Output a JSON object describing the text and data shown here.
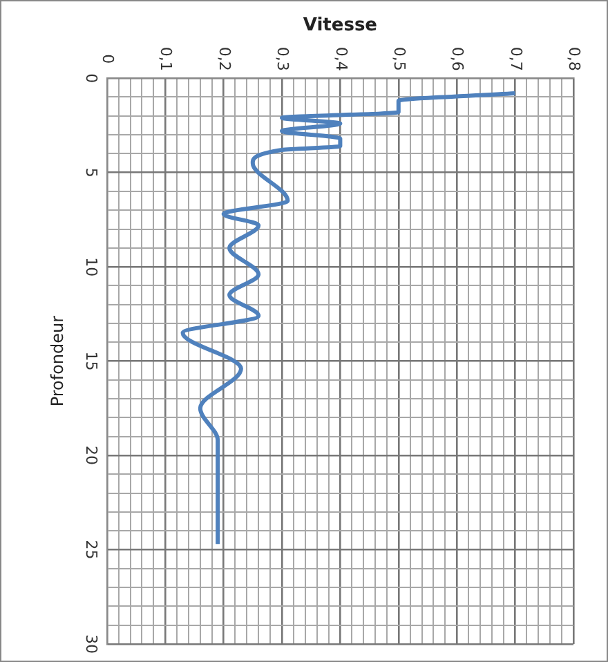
{
  "chart_data": {
    "type": "line",
    "xlabel": "Vitesse",
    "ylabel": "Profondeur",
    "color": "#4f81bd",
    "grid": true,
    "marker": "none",
    "line_style": "solid",
    "x": [
      0.7,
      0.5,
      0.5,
      0.3,
      0.4,
      0.3,
      0.4,
      0.4,
      0.3,
      0.25,
      0.31,
      0.2,
      0.26,
      0.21,
      0.26,
      0.21,
      0.26,
      0.13,
      0.23,
      0.16,
      0.19,
      0.19
    ],
    "values": [
      0.8,
      1.2,
      1.8,
      2.1,
      2.4,
      2.8,
      3.2,
      3.6,
      3.8,
      4.5,
      6.5,
      7.2,
      7.8,
      9.0,
      10.4,
      11.5,
      12.6,
      13.5,
      15.4,
      17.5,
      19.2,
      24.7
    ],
    "ylim": [
      30,
      0
    ],
    "yticks": [
      0,
      {
        "value": 1,
        "label": null
      },
      {
        "value": 2,
        "label": null
      },
      {
        "value": 3,
        "label": null
      },
      {
        "value": 4,
        "label": null
      },
      5,
      {
        "value": 6,
        "label": null
      },
      {
        "value": 7,
        "label": null
      },
      {
        "value": 8,
        "label": null
      },
      {
        "value": 9,
        "label": null
      },
      10,
      {
        "value": 11,
        "label": null
      },
      {
        "value": 12,
        "label": null
      },
      {
        "value": 13,
        "label": null
      },
      {
        "value": 14,
        "label": null
      },
      15,
      {
        "value": 16,
        "label": null
      },
      {
        "value": 17,
        "label": null
      },
      {
        "value": 18,
        "label": null
      },
      {
        "value": 19,
        "label": null
      },
      20,
      {
        "value": 21,
        "label": null
      },
      {
        "value": 22,
        "label": null
      },
      {
        "value": 23,
        "label": null
      },
      {
        "value": 24,
        "label": null
      },
      25,
      {
        "value": 26,
        "label": null
      },
      {
        "value": 27,
        "label": null
      },
      {
        "value": 28,
        "label": null
      },
      {
        "value": 29,
        "label": null
      },
      30
    ],
    "xlim": [
      0,
      0.8
    ],
    "xticks": [
      0,
      {
        "value": 0.02,
        "label": null
      },
      {
        "value": 0.04,
        "label": null
      },
      {
        "value": 0.06,
        "label": null
      },
      {
        "value": 0.08,
        "label": null
      },
      {
        "value": 0.1,
        "label": "0,1"
      },
      {
        "value": 0.12,
        "label": null
      },
      {
        "value": 0.14,
        "label": null
      },
      {
        "value": 0.16,
        "label": null
      },
      {
        "value": 0.18,
        "label": null
      },
      {
        "value": 0.2,
        "label": "0,2"
      },
      {
        "value": 0.22,
        "label": null
      },
      {
        "value": 0.24,
        "label": null
      },
      {
        "value": 0.26,
        "label": null
      },
      {
        "value": 0.28,
        "label": null
      },
      {
        "value": 0.3,
        "label": "0,3"
      },
      {
        "value": 0.32,
        "label": null
      },
      {
        "value": 0.34,
        "label": null
      },
      {
        "value": 0.36,
        "label": null
      },
      {
        "value": 0.38,
        "label": null
      },
      {
        "value": 0.4,
        "label": "0,4"
      },
      {
        "value": 0.42,
        "label": null
      },
      {
        "value": 0.44,
        "label": null
      },
      {
        "value": 0.46,
        "label": null
      },
      {
        "value": 0.48,
        "label": null
      },
      {
        "value": 0.5,
        "label": "0,5"
      },
      {
        "value": 0.52,
        "label": null
      },
      {
        "value": 0.54,
        "label": null
      },
      {
        "value": 0.56,
        "label": null
      },
      {
        "value": 0.58,
        "label": null
      },
      {
        "value": 0.6,
        "label": "0,6"
      },
      {
        "value": 0.62,
        "label": null
      },
      {
        "value": 0.64,
        "label": null
      },
      {
        "value": 0.66,
        "label": null
      },
      {
        "value": 0.68,
        "label": null
      },
      {
        "value": 0.7,
        "label": "0,7"
      },
      {
        "value": 0.72,
        "label": null
      },
      {
        "value": 0.74,
        "label": null
      },
      {
        "value": 0.76,
        "label": null
      },
      {
        "value": 0.78,
        "label": null
      },
      {
        "value": 0.8,
        "label": "0,8"
      }
    ]
  }
}
